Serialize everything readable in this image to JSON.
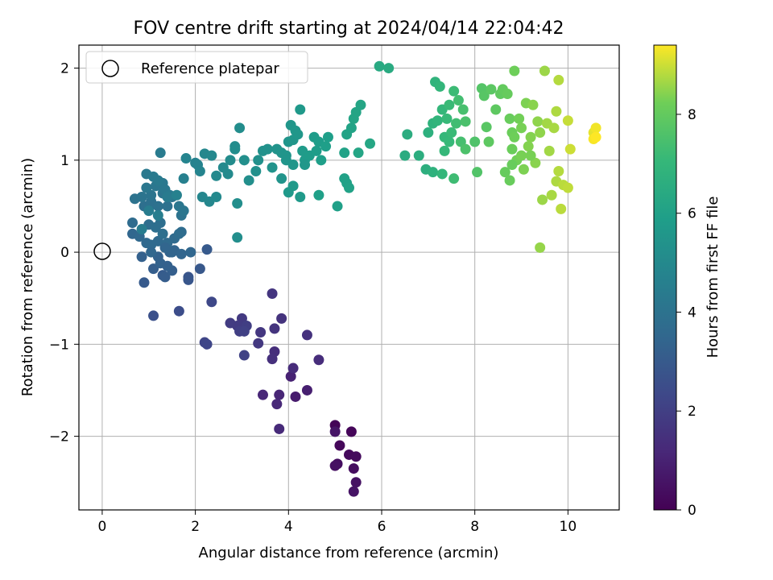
{
  "chart_data": {
    "type": "scatter",
    "title": "FOV centre drift starting at 2024/04/14 22:04:42",
    "xlabel": "Angular distance from reference (arcmin)",
    "ylabel": "Rotation from reference (arcmin)",
    "xlim": [
      -0.5,
      11.1
    ],
    "ylim": [
      -2.8,
      2.25
    ],
    "xticks": [
      0,
      2,
      4,
      6,
      8,
      10
    ],
    "yticks": [
      -2,
      -1,
      0,
      1,
      2
    ],
    "xtick_labels": [
      "0",
      "2",
      "4",
      "6",
      "8",
      "10"
    ],
    "ytick_labels": [
      "−2",
      "−1",
      "0",
      "1",
      "2"
    ],
    "grid": true,
    "legend": {
      "position": "upper-left",
      "entries": [
        "Reference platepar"
      ]
    },
    "reference_point": {
      "x": 0,
      "y": 0,
      "label": "Reference platepar"
    },
    "colorbar": {
      "label": "Hours from first FF file",
      "colormap": "viridis",
      "range": [
        0,
        9.4
      ],
      "ticks": [
        0,
        2,
        4,
        6,
        8
      ],
      "tick_labels": [
        "0",
        "2",
        "4",
        "6",
        "8"
      ]
    },
    "columns": [
      "x",
      "y",
      "hours"
    ],
    "points": [
      [
        5.0,
        -1.88,
        0.1
      ],
      [
        5.35,
        -1.95,
        0.15
      ],
      [
        5.1,
        -2.1,
        0.2
      ],
      [
        5.3,
        -2.2,
        0.25
      ],
      [
        5.45,
        -2.22,
        0.3
      ],
      [
        5.4,
        -2.35,
        0.35
      ],
      [
        5.05,
        -2.3,
        0.4
      ],
      [
        5.0,
        -2.32,
        0.45
      ],
      [
        5.45,
        -2.5,
        0.5
      ],
      [
        5.4,
        -2.6,
        0.55
      ],
      [
        5.0,
        -1.95,
        0.6
      ],
      [
        4.15,
        -1.57,
        0.8
      ],
      [
        4.4,
        -1.5,
        0.9
      ],
      [
        4.05,
        -1.35,
        1.0
      ],
      [
        3.8,
        -1.55,
        1.1
      ],
      [
        3.45,
        -1.55,
        1.15
      ],
      [
        3.75,
        -1.65,
        1.2
      ],
      [
        3.8,
        -1.92,
        1.25
      ],
      [
        4.1,
        -1.26,
        1.3
      ],
      [
        4.65,
        -1.17,
        1.35
      ],
      [
        3.7,
        -1.08,
        1.4
      ],
      [
        3.65,
        -1.16,
        1.45
      ],
      [
        4.4,
        -0.9,
        1.5
      ],
      [
        3.85,
        -0.72,
        1.55
      ],
      [
        3.7,
        -0.83,
        1.6
      ],
      [
        3.65,
        -0.45,
        1.65
      ],
      [
        3.4,
        -0.87,
        1.7
      ],
      [
        3.35,
        -0.99,
        1.75
      ],
      [
        3.0,
        -0.72,
        1.8
      ],
      [
        2.9,
        -0.8,
        1.85
      ],
      [
        2.75,
        -0.77,
        1.9
      ],
      [
        3.1,
        -0.8,
        1.95
      ],
      [
        2.95,
        -0.86,
        2.0
      ],
      [
        3.05,
        -0.86,
        2.05
      ],
      [
        3.05,
        -1.12,
        2.1
      ],
      [
        2.2,
        -0.98,
        2.2
      ],
      [
        2.25,
        -1.0,
        2.25
      ],
      [
        2.35,
        -0.54,
        2.3
      ],
      [
        2.25,
        0.03,
        3.0
      ],
      [
        1.65,
        -0.64,
        2.5
      ],
      [
        1.1,
        -0.69,
        2.6
      ],
      [
        1.85,
        -0.27,
        2.8
      ],
      [
        1.85,
        -0.3,
        2.85
      ],
      [
        2.1,
        -0.18,
        2.9
      ],
      [
        0.9,
        -0.33,
        3.0
      ],
      [
        1.3,
        -0.25,
        3.05
      ],
      [
        1.35,
        -0.27,
        3.1
      ],
      [
        1.1,
        -0.18,
        3.15
      ],
      [
        1.5,
        -0.2,
        3.2
      ],
      [
        0.85,
        -0.05,
        3.25
      ],
      [
        1.2,
        -0.05,
        3.3
      ],
      [
        1.45,
        0.0,
        3.35
      ],
      [
        1.55,
        0.02,
        3.4
      ],
      [
        1.7,
        -0.02,
        3.45
      ],
      [
        1.9,
        0.0,
        3.5
      ],
      [
        0.65,
        0.2,
        3.5
      ],
      [
        0.8,
        0.17,
        3.55
      ],
      [
        0.95,
        0.1,
        3.55
      ],
      [
        1.05,
        0.08,
        3.6
      ],
      [
        1.2,
        0.12,
        3.6
      ],
      [
        1.4,
        0.1,
        3.65
      ],
      [
        1.55,
        0.15,
        3.65
      ],
      [
        1.7,
        0.22,
        3.7
      ],
      [
        1.65,
        0.2,
        3.75
      ],
      [
        0.65,
        0.32,
        3.7
      ],
      [
        1.0,
        0.3,
        3.75
      ],
      [
        1.15,
        0.27,
        3.8
      ],
      [
        1.25,
        0.32,
        3.8
      ],
      [
        1.3,
        0.2,
        3.85
      ],
      [
        0.9,
        0.5,
        3.85
      ],
      [
        1.0,
        0.48,
        3.9
      ],
      [
        1.05,
        0.55,
        3.9
      ],
      [
        1.2,
        0.5,
        3.95
      ],
      [
        1.4,
        0.5,
        3.95
      ],
      [
        1.7,
        0.4,
        4.0
      ],
      [
        0.7,
        0.58,
        4.0
      ],
      [
        0.85,
        0.6,
        4.05
      ],
      [
        1.05,
        0.62,
        4.05
      ],
      [
        1.3,
        0.64,
        4.1
      ],
      [
        1.5,
        0.6,
        4.1
      ],
      [
        1.65,
        0.5,
        4.15
      ],
      [
        1.75,
        0.45,
        4.15
      ],
      [
        0.95,
        0.7,
        4.2
      ],
      [
        1.15,
        0.72,
        4.2
      ],
      [
        1.3,
        0.75,
        4.25
      ],
      [
        1.35,
        0.68,
        4.25
      ],
      [
        1.45,
        0.62,
        4.3
      ],
      [
        0.95,
        0.85,
        4.3
      ],
      [
        1.1,
        0.82,
        4.35
      ],
      [
        1.2,
        0.78,
        4.35
      ],
      [
        1.25,
        1.08,
        4.4
      ],
      [
        1.4,
        0.6,
        4.4
      ],
      [
        1.0,
        0.45,
        4.45
      ],
      [
        0.85,
        0.25,
        4.45
      ],
      [
        1.2,
        0.4,
        4.5
      ],
      [
        1.5,
        0.0,
        3.4
      ],
      [
        1.25,
        -0.12,
        3.3
      ],
      [
        1.4,
        -0.15,
        3.25
      ],
      [
        1.35,
        0.05,
        3.45
      ],
      [
        1.05,
        0.0,
        3.5
      ],
      [
        1.75,
        0.8,
        4.6
      ],
      [
        1.6,
        0.62,
        4.65
      ],
      [
        2.0,
        0.97,
        4.7
      ],
      [
        2.05,
        0.95,
        4.75
      ],
      [
        2.1,
        0.88,
        4.8
      ],
      [
        1.8,
        1.02,
        4.8
      ],
      [
        2.15,
        0.6,
        4.85
      ],
      [
        2.2,
        1.07,
        4.9
      ],
      [
        2.3,
        0.55,
        4.9
      ],
      [
        2.35,
        1.05,
        4.95
      ],
      [
        2.45,
        0.6,
        5.0
      ],
      [
        2.45,
        0.83,
        5.0
      ],
      [
        2.6,
        0.92,
        5.05
      ],
      [
        2.7,
        0.85,
        5.05
      ],
      [
        2.75,
        1.0,
        5.1
      ],
      [
        2.85,
        1.15,
        5.1
      ],
      [
        2.85,
        1.12,
        5.15
      ],
      [
        2.95,
        1.35,
        5.15
      ],
      [
        2.9,
        0.53,
        5.2
      ],
      [
        2.9,
        0.16,
        5.2
      ],
      [
        3.05,
        1.0,
        5.25
      ],
      [
        3.15,
        0.78,
        5.25
      ],
      [
        3.3,
        0.88,
        5.3
      ],
      [
        3.35,
        1.0,
        5.3
      ],
      [
        3.45,
        1.1,
        5.35
      ],
      [
        3.55,
        1.12,
        5.35
      ],
      [
        3.65,
        0.92,
        5.4
      ],
      [
        3.75,
        1.12,
        5.4
      ],
      [
        3.85,
        0.8,
        5.45
      ],
      [
        3.85,
        1.08,
        5.45
      ],
      [
        3.95,
        1.05,
        5.5
      ],
      [
        4.0,
        1.2,
        5.5
      ],
      [
        4.05,
        1.38,
        5.55
      ],
      [
        4.1,
        1.22,
        5.55
      ],
      [
        4.15,
        1.32,
        5.6
      ],
      [
        4.2,
        1.28,
        5.6
      ],
      [
        4.25,
        1.55,
        5.65
      ],
      [
        4.0,
        0.65,
        5.65
      ],
      [
        4.1,
        0.72,
        5.7
      ],
      [
        4.25,
        0.6,
        5.7
      ],
      [
        4.3,
        1.1,
        5.75
      ],
      [
        4.35,
        1.0,
        5.75
      ],
      [
        4.45,
        1.05,
        5.8
      ],
      [
        4.55,
        1.25,
        5.8
      ],
      [
        4.6,
        1.1,
        5.85
      ],
      [
        4.65,
        1.2,
        5.85
      ],
      [
        4.7,
        1.0,
        5.9
      ],
      [
        4.8,
        1.15,
        5.9
      ],
      [
        4.85,
        1.25,
        5.9
      ],
      [
        4.65,
        0.62,
        5.95
      ],
      [
        5.05,
        0.5,
        5.95
      ],
      [
        5.2,
        0.8,
        6.0
      ],
      [
        5.25,
        0.75,
        6.0
      ],
      [
        5.3,
        0.7,
        6.05
      ],
      [
        5.2,
        1.08,
        6.05
      ],
      [
        5.25,
        1.28,
        6.1
      ],
      [
        5.35,
        1.35,
        6.1
      ],
      [
        5.4,
        1.45,
        6.15
      ],
      [
        5.45,
        1.52,
        6.15
      ],
      [
        5.55,
        1.6,
        6.2
      ],
      [
        5.5,
        1.08,
        6.2
      ],
      [
        5.75,
        1.18,
        6.25
      ],
      [
        3.95,
        1.0,
        5.5
      ],
      [
        4.1,
        0.95,
        5.55
      ],
      [
        4.35,
        0.95,
        5.6
      ],
      [
        5.95,
        2.02,
        6.4
      ],
      [
        6.15,
        2.0,
        6.45
      ],
      [
        6.5,
        1.05,
        6.5
      ],
      [
        6.55,
        1.28,
        6.55
      ],
      [
        6.8,
        1.05,
        6.6
      ],
      [
        6.95,
        0.9,
        6.65
      ],
      [
        7.0,
        1.3,
        6.7
      ],
      [
        7.1,
        0.87,
        6.75
      ],
      [
        7.1,
        1.4,
        6.8
      ],
      [
        7.15,
        1.85,
        6.85
      ],
      [
        7.2,
        1.43,
        6.9
      ],
      [
        7.25,
        1.8,
        6.95
      ],
      [
        7.3,
        1.55,
        7.0
      ],
      [
        7.3,
        0.85,
        7.0
      ],
      [
        7.35,
        1.25,
        7.05
      ],
      [
        7.35,
        1.1,
        7.05
      ],
      [
        7.4,
        1.45,
        7.1
      ],
      [
        7.45,
        1.2,
        7.1
      ],
      [
        7.45,
        1.6,
        7.15
      ],
      [
        7.5,
        1.3,
        7.15
      ],
      [
        7.55,
        1.75,
        7.2
      ],
      [
        7.55,
        0.8,
        7.25
      ],
      [
        7.6,
        1.4,
        7.3
      ],
      [
        7.65,
        1.65,
        7.35
      ],
      [
        7.7,
        1.2,
        7.4
      ],
      [
        7.75,
        1.55,
        7.45
      ],
      [
        7.8,
        1.42,
        7.5
      ],
      [
        7.8,
        1.12,
        7.55
      ],
      [
        8.0,
        1.2,
        7.6
      ],
      [
        8.05,
        0.87,
        7.65
      ],
      [
        8.15,
        1.78,
        7.7
      ],
      [
        8.2,
        1.7,
        7.75
      ],
      [
        8.25,
        1.36,
        7.8
      ],
      [
        8.35,
        1.77,
        7.85
      ],
      [
        8.45,
        1.55,
        7.9
      ],
      [
        8.55,
        1.72,
        7.95
      ],
      [
        8.6,
        1.77,
        8.0
      ],
      [
        8.65,
        0.87,
        8.05
      ],
      [
        8.7,
        1.72,
        8.05
      ],
      [
        8.75,
        1.45,
        8.1
      ],
      [
        8.75,
        0.78,
        8.1
      ],
      [
        8.8,
        1.3,
        8.15
      ],
      [
        8.8,
        1.12,
        8.15
      ],
      [
        8.85,
        1.97,
        8.2
      ],
      [
        8.85,
        1.25,
        8.2
      ],
      [
        8.9,
        1.0,
        8.25
      ],
      [
        8.95,
        1.45,
        8.25
      ],
      [
        9.0,
        1.35,
        8.3
      ],
      [
        9.0,
        1.05,
        8.3
      ],
      [
        9.05,
        0.9,
        8.35
      ],
      [
        9.1,
        1.62,
        8.35
      ],
      [
        9.15,
        1.15,
        8.4
      ],
      [
        9.2,
        1.25,
        8.4
      ],
      [
        9.25,
        1.6,
        8.45
      ],
      [
        9.3,
        0.97,
        8.45
      ],
      [
        9.35,
        1.42,
        8.5
      ],
      [
        9.4,
        1.3,
        8.5
      ],
      [
        9.4,
        0.05,
        8.55
      ],
      [
        9.45,
        0.57,
        8.6
      ],
      [
        9.5,
        1.97,
        8.6
      ],
      [
        9.55,
        1.4,
        8.65
      ],
      [
        9.6,
        1.1,
        8.65
      ],
      [
        9.65,
        0.62,
        8.7
      ],
      [
        9.7,
        1.35,
        8.7
      ],
      [
        9.75,
        1.53,
        8.75
      ],
      [
        9.75,
        0.77,
        8.75
      ],
      [
        9.8,
        1.87,
        8.8
      ],
      [
        9.8,
        0.88,
        8.8
      ],
      [
        9.85,
        0.47,
        8.85
      ],
      [
        9.9,
        0.73,
        8.85
      ],
      [
        10.0,
        0.7,
        8.9
      ],
      [
        10.0,
        1.43,
        8.95
      ],
      [
        10.05,
        1.12,
        9.0
      ],
      [
        10.55,
        1.3,
        9.2
      ],
      [
        10.6,
        1.35,
        9.3
      ],
      [
        10.55,
        1.23,
        9.35
      ],
      [
        10.6,
        1.25,
        9.4
      ],
      [
        8.8,
        0.95,
        8.1
      ],
      [
        9.2,
        1.05,
        8.3
      ],
      [
        8.3,
        1.2,
        7.9
      ]
    ]
  }
}
